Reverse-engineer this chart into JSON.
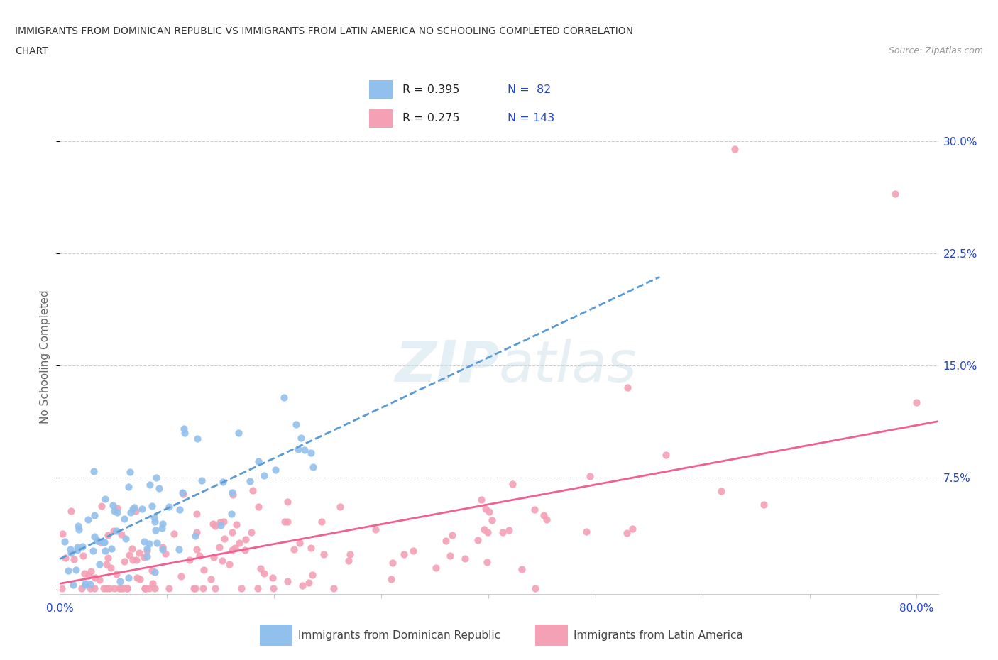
{
  "title_line1": "IMMIGRANTS FROM DOMINICAN REPUBLIC VS IMMIGRANTS FROM LATIN AMERICA NO SCHOOLING COMPLETED CORRELATION",
  "title_line2": "CHART",
  "source_text": "Source: ZipAtlas.com",
  "ylabel": "No Schooling Completed",
  "xlim": [
    0.0,
    0.82
  ],
  "ylim": [
    -0.003,
    0.315
  ],
  "xtick_positions": [
    0.0,
    0.1,
    0.2,
    0.3,
    0.4,
    0.5,
    0.6,
    0.7,
    0.8
  ],
  "xticklabels": [
    "0.0%",
    "",
    "",
    "",
    "",
    "",
    "",
    "",
    "80.0%"
  ],
  "ytick_positions": [
    0.0,
    0.075,
    0.15,
    0.225,
    0.3
  ],
  "yticklabels_right": [
    "",
    "7.5%",
    "15.0%",
    "22.5%",
    "30.0%"
  ],
  "color_blue": "#92c0ed",
  "color_pink": "#f4a0b5",
  "color_blue_line": "#5b9bd5",
  "color_pink_line": "#f06090",
  "color_axis_text": "#2244cc",
  "watermark_color": "#d8e8f0",
  "background_color": "#ffffff",
  "grid_color": "#cccccc",
  "legend_label1": "Immigrants from Dominican Republic",
  "legend_label2": "Immigrants from Latin America",
  "legend_r1": "R = 0.395",
  "legend_n1": "N =  82",
  "legend_r2": "R = 0.275",
  "legend_n2": "N = 143"
}
